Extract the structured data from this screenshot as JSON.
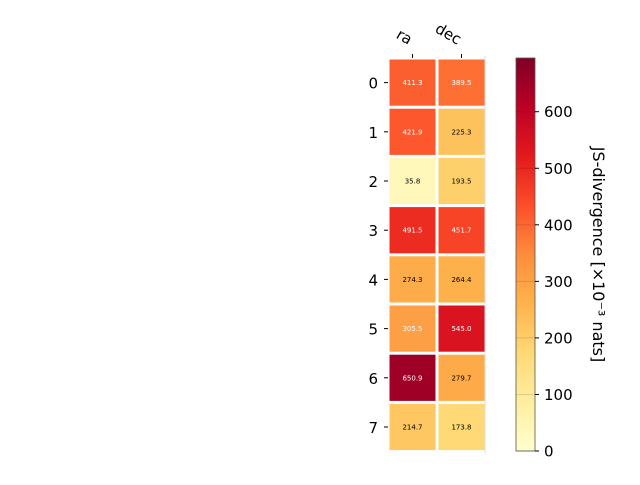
{
  "chart_data": {
    "type": "heatmap",
    "columns": [
      "ra",
      "dec"
    ],
    "rows": [
      "0",
      "1",
      "2",
      "3",
      "4",
      "5",
      "6",
      "7"
    ],
    "values": [
      [
        411.3,
        389.5
      ],
      [
        421.9,
        225.3
      ],
      [
        35.8,
        193.5
      ],
      [
        491.5,
        451.7
      ],
      [
        274.3,
        264.4
      ],
      [
        305.5,
        545.0
      ],
      [
        650.9,
        279.7
      ],
      [
        214.7,
        173.8
      ]
    ],
    "colorbar": {
      "label": "JS-divergence [×10⁻³ nats]",
      "range": [
        0,
        695
      ],
      "ticks": [
        0,
        100,
        200,
        300,
        400,
        500,
        600
      ],
      "colormap": "YlOrRd",
      "stops": [
        "#ffffcc",
        "#ffeda0",
        "#fed976",
        "#feb24c",
        "#fd8d3c",
        "#fc4e2a",
        "#e31a1c",
        "#bd0026",
        "#800026"
      ]
    },
    "cell_text_threshold": 300,
    "grid": false
  }
}
